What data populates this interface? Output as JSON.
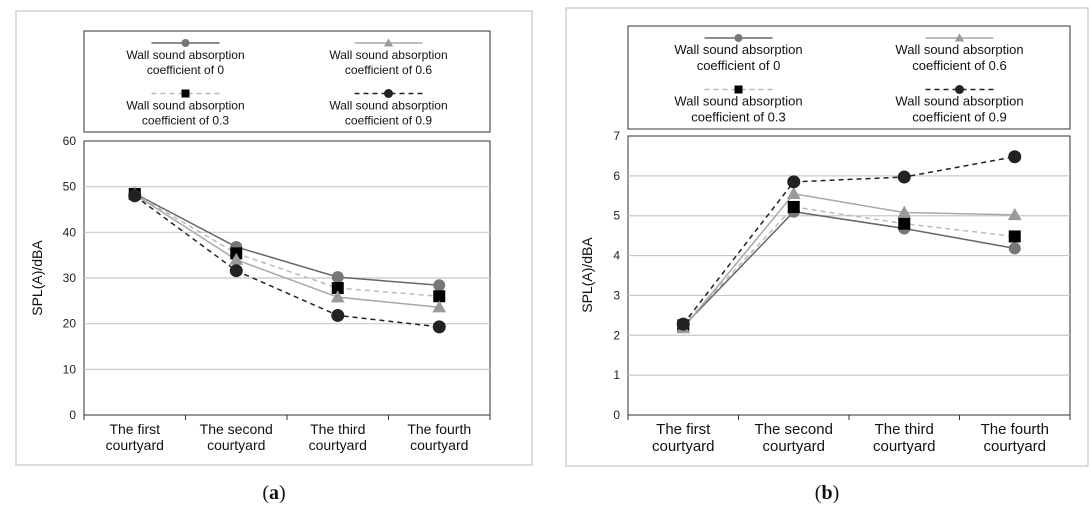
{
  "chart_data": [
    {
      "type": "line",
      "panel_label": "a",
      "categories": [
        "The first courtyard",
        "The second courtyard",
        "The third courtyard",
        "The fourth courtyard"
      ],
      "ylabel": "SPL(A)/dBA",
      "ylim": [
        0,
        60
      ],
      "yticks": [
        0,
        10,
        20,
        30,
        40,
        50,
        60
      ],
      "grid": true,
      "legend_position": "top",
      "series": [
        {
          "name": "Wall sound absorption coefficient of 0",
          "values": [
            48.5,
            36.8,
            30.2,
            28.4
          ],
          "marker": "circle",
          "color": "#777777",
          "dash": "solid"
        },
        {
          "name": "Wall sound absorption coefficient of 0.6",
          "values": [
            48.3,
            34.0,
            25.8,
            23.6
          ],
          "marker": "triangle",
          "color": "#9a9a9a",
          "dash": "solid"
        },
        {
          "name": "Wall sound absorption coefficient of 0.3",
          "values": [
            48.4,
            35.4,
            27.8,
            26.0
          ],
          "marker": "square",
          "color": "#000000",
          "dash": "dashed-light"
        },
        {
          "name": "Wall sound absorption coefficient of 0.9",
          "values": [
            48.0,
            31.6,
            21.8,
            19.3
          ],
          "marker": "dot",
          "color": "#222222",
          "dash": "dashed"
        }
      ]
    },
    {
      "type": "line",
      "panel_label": "b",
      "categories": [
        "The first courtyard",
        "The second courtyard",
        "The third courtyard",
        "The fourth courtyard"
      ],
      "ylabel": "SPL(A)/dBA",
      "ylim": [
        0,
        7
      ],
      "yticks": [
        0,
        1,
        2,
        3,
        4,
        5,
        6,
        7
      ],
      "grid": true,
      "legend_position": "top",
      "series": [
        {
          "name": "Wall sound absorption coefficient of 0",
          "values": [
            2.22,
            5.1,
            4.68,
            4.18
          ],
          "marker": "circle",
          "color": "#777777",
          "dash": "solid"
        },
        {
          "name": "Wall sound absorption coefficient of 0.6",
          "values": [
            2.18,
            5.55,
            5.08,
            5.02
          ],
          "marker": "triangle",
          "color": "#9a9a9a",
          "dash": "solid"
        },
        {
          "name": "Wall sound absorption coefficient of 0.3",
          "values": [
            2.25,
            5.22,
            4.8,
            4.48
          ],
          "marker": "square",
          "color": "#000000",
          "dash": "dashed-light"
        },
        {
          "name": "Wall sound absorption coefficient of 0.9",
          "values": [
            2.28,
            5.85,
            5.97,
            6.48
          ],
          "marker": "dot",
          "color": "#222222",
          "dash": "dashed"
        }
      ]
    }
  ],
  "captions": [
    {
      "open": "(",
      "letter": "a",
      "close": ")"
    },
    {
      "open": "(",
      "letter": "b",
      "close": ")"
    }
  ]
}
